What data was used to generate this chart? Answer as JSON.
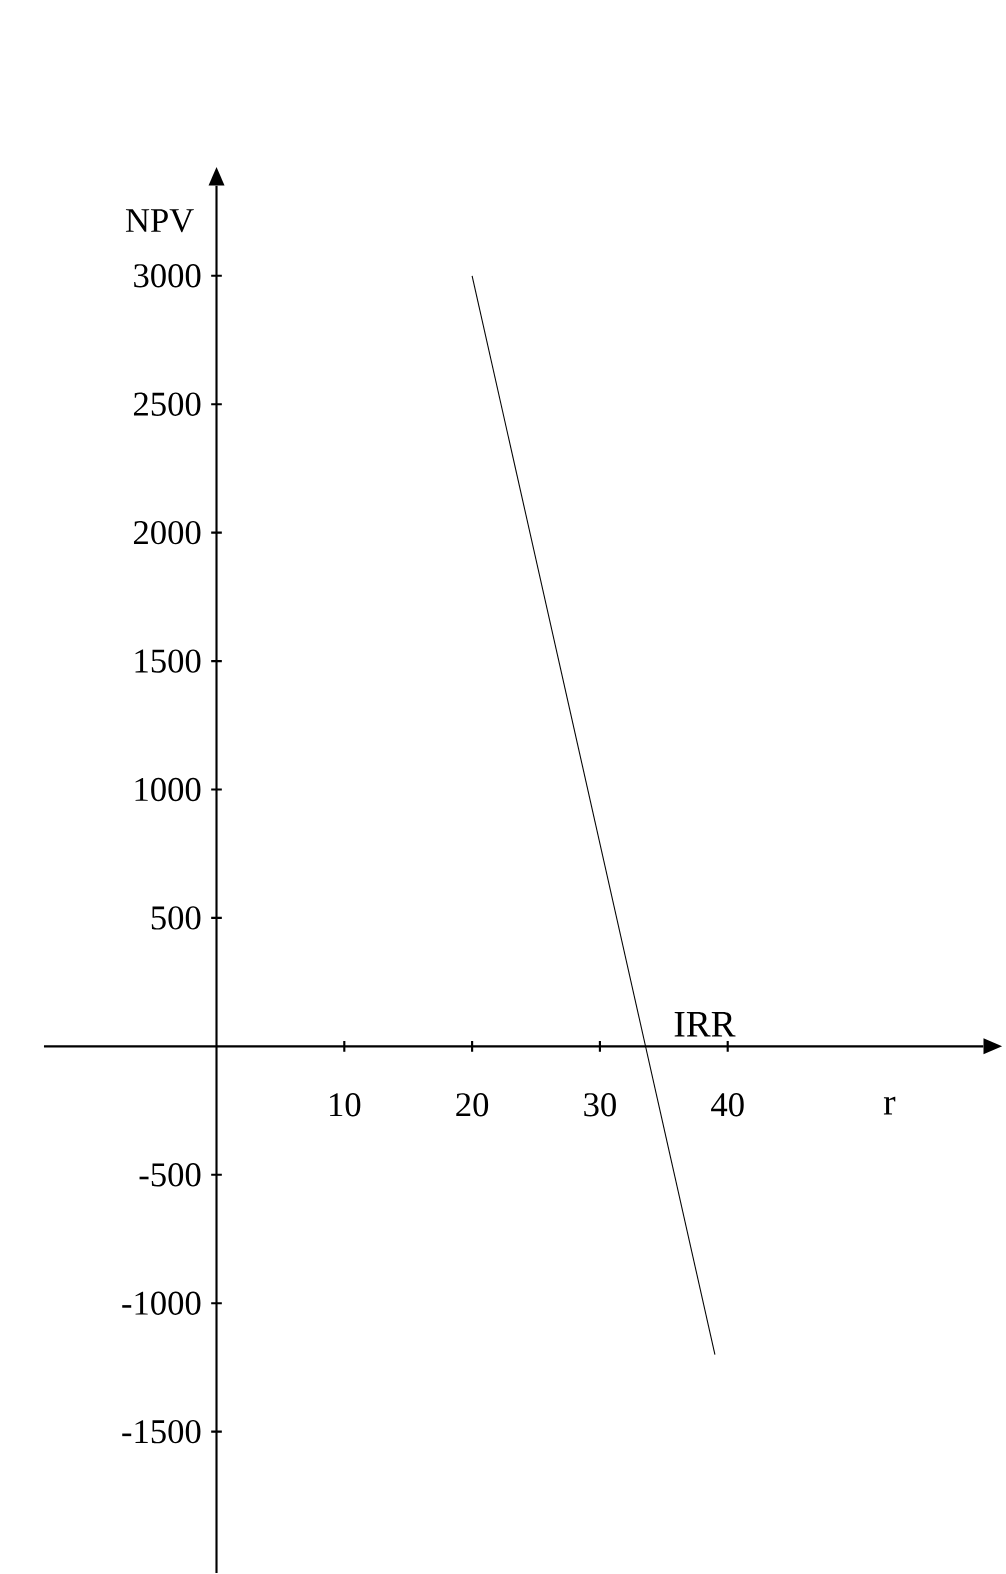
{
  "chart_data": {
    "type": "line",
    "xlabel": "r",
    "ylabel": "NPV",
    "annotations": [
      "IRR"
    ],
    "x": [
      20,
      39
    ],
    "series": [
      {
        "color": "#000000",
        "values": [
          3000,
          -1200
        ]
      }
    ],
    "xlim": [
      -13.5,
      60
    ],
    "ylim": [
      -2050,
      3350
    ],
    "xticks": [
      10,
      20,
      30,
      40
    ],
    "yticks": [
      -1500,
      -1000,
      -500,
      500,
      1000,
      1500,
      2000,
      2500,
      3000
    ]
  }
}
